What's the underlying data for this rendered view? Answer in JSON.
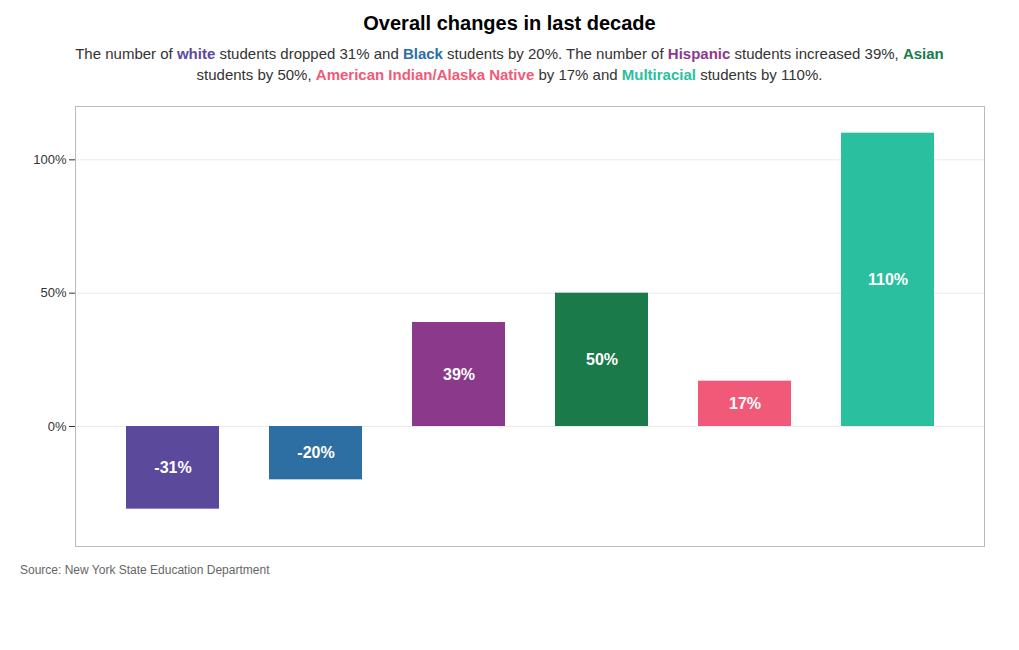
{
  "chart_data": {
    "type": "bar",
    "title": "Overall changes in last decade",
    "subtitle": "The number of white students dropped 31% and Black students by 20%. The number of Hispanic students increased 39%, Asian students by 50%, American Indian/Alaska Native by 17% and Multiracial students by 110%.",
    "source": "Source: New York State Education Department",
    "categories": [
      "White",
      "Black",
      "Hispanic",
      "Asian",
      "American Indian/Alaska Native",
      "Multiracial"
    ],
    "values": [
      -31,
      -20,
      39,
      50,
      17,
      110
    ],
    "value_labels": [
      "-31%",
      "-20%",
      "39%",
      "50%",
      "17%",
      "110%"
    ],
    "colors": [
      "#5b4a9b",
      "#2e6fa3",
      "#8b3a8b",
      "#1a7a4a",
      "#f05a78",
      "#2abf9e"
    ],
    "ylim": [
      -45,
      120
    ],
    "yticks": [
      {
        "value": 0,
        "label": "0%"
      },
      {
        "value": 50,
        "label": "50%"
      },
      {
        "value": 100,
        "label": "100%"
      }
    ],
    "grid": true,
    "data_labels": true,
    "tick_labels": "y"
  }
}
